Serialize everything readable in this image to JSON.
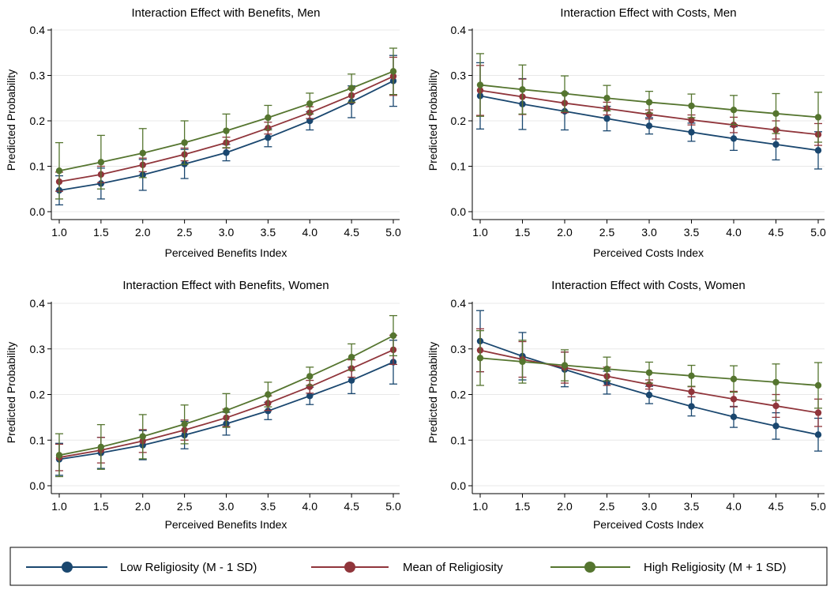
{
  "colors": {
    "low": "#1a476f",
    "mean": "#90353b",
    "high": "#55752f",
    "grid": "#e8e8e8",
    "axis": "#000000"
  },
  "legend": {
    "items": [
      {
        "key": "low",
        "label": "Low Religiosity (M - 1 SD)"
      },
      {
        "key": "mean",
        "label": "Mean of Religiosity"
      },
      {
        "key": "high",
        "label": "High Religiosity (M + 1 SD)"
      }
    ]
  },
  "chart_data": [
    {
      "type": "line",
      "title": "Interaction Effect with Benefits, Men",
      "xlabel": "Perceived Benefits Index",
      "ylabel": "Predicted Probability",
      "x": [
        1.0,
        1.5,
        2.0,
        2.5,
        3.0,
        3.5,
        4.0,
        4.5,
        5.0
      ],
      "xticks": [
        "1.0",
        "1.5",
        "2.0",
        "2.5",
        "3.0",
        "3.5",
        "4.0",
        "4.5",
        "5.0"
      ],
      "yticks": [
        "0.0",
        "0.1",
        "0.2",
        "0.3",
        "0.4"
      ],
      "xlim": [
        1.0,
        5.0
      ],
      "ylim": [
        0.0,
        0.4
      ],
      "grid": true,
      "series": [
        {
          "key": "low",
          "name": "Low Religiosity (M - 1 SD)",
          "values": [
            0.047,
            0.062,
            0.081,
            0.105,
            0.13,
            0.163,
            0.2,
            0.242,
            0.288
          ],
          "lower": [
            0.015,
            0.028,
            0.047,
            0.073,
            0.112,
            0.143,
            0.18,
            0.207,
            0.232
          ],
          "upper": [
            0.079,
            0.096,
            0.115,
            0.137,
            0.148,
            0.183,
            0.22,
            0.277,
            0.344
          ]
        },
        {
          "key": "mean",
          "name": "Mean of Religiosity",
          "values": [
            0.066,
            0.082,
            0.103,
            0.126,
            0.152,
            0.184,
            0.218,
            0.256,
            0.298
          ],
          "lower": [
            0.045,
            0.064,
            0.088,
            0.112,
            0.14,
            0.171,
            0.205,
            0.24,
            0.256
          ],
          "upper": [
            0.087,
            0.1,
            0.118,
            0.14,
            0.164,
            0.197,
            0.231,
            0.272,
            0.34
          ]
        },
        {
          "key": "high",
          "name": "High Religiosity (M + 1 SD)",
          "values": [
            0.09,
            0.109,
            0.129,
            0.152,
            0.178,
            0.207,
            0.238,
            0.272,
            0.309
          ],
          "lower": [
            0.028,
            0.05,
            0.075,
            0.104,
            0.141,
            0.18,
            0.215,
            0.241,
            0.258
          ],
          "upper": [
            0.152,
            0.168,
            0.183,
            0.2,
            0.215,
            0.234,
            0.261,
            0.303,
            0.36
          ]
        }
      ]
    },
    {
      "type": "line",
      "title": "Interaction Effect with Costs, Men",
      "xlabel": "Perceived Costs Index",
      "ylabel": "Predicted Probability",
      "x": [
        1.0,
        1.5,
        2.0,
        2.5,
        3.0,
        3.5,
        4.0,
        4.5,
        5.0
      ],
      "xticks": [
        "1.0",
        "1.5",
        "2.0",
        "2.5",
        "3.0",
        "3.5",
        "4.0",
        "4.5",
        "5.0"
      ],
      "yticks": [
        "0.0",
        "0.1",
        "0.2",
        "0.3",
        "0.4"
      ],
      "xlim": [
        1.0,
        5.0
      ],
      "ylim": [
        0.0,
        0.4
      ],
      "grid": true,
      "series": [
        {
          "key": "low",
          "name": "Low Religiosity (M - 1 SD)",
          "values": [
            0.255,
            0.237,
            0.221,
            0.205,
            0.189,
            0.175,
            0.161,
            0.148,
            0.135
          ],
          "lower": [
            0.182,
            0.181,
            0.18,
            0.178,
            0.171,
            0.155,
            0.135,
            0.114,
            0.094
          ],
          "upper": [
            0.328,
            0.293,
            0.262,
            0.232,
            0.207,
            0.195,
            0.187,
            0.182,
            0.176
          ]
        },
        {
          "key": "mean",
          "name": "Mean of Religiosity",
          "values": [
            0.267,
            0.253,
            0.239,
            0.227,
            0.214,
            0.202,
            0.191,
            0.18,
            0.17
          ],
          "lower": [
            0.212,
            0.214,
            0.218,
            0.213,
            0.204,
            0.191,
            0.174,
            0.16,
            0.146
          ],
          "upper": [
            0.322,
            0.292,
            0.26,
            0.241,
            0.224,
            0.213,
            0.208,
            0.2,
            0.194
          ]
        },
        {
          "key": "high",
          "name": "High Religiosity (M + 1 SD)",
          "values": [
            0.279,
            0.269,
            0.26,
            0.25,
            0.241,
            0.233,
            0.224,
            0.216,
            0.208
          ],
          "lower": [
            0.21,
            0.215,
            0.221,
            0.222,
            0.217,
            0.207,
            0.192,
            0.172,
            0.153
          ],
          "upper": [
            0.348,
            0.323,
            0.299,
            0.278,
            0.265,
            0.259,
            0.256,
            0.26,
            0.263
          ]
        }
      ]
    },
    {
      "type": "line",
      "title": "Interaction Effect with Benefits, Women",
      "xlabel": "Perceived Benefits Index",
      "ylabel": "Predicted Probability",
      "x": [
        1.0,
        1.5,
        2.0,
        2.5,
        3.0,
        3.5,
        4.0,
        4.5,
        5.0
      ],
      "xticks": [
        "1.0",
        "1.5",
        "2.0",
        "2.5",
        "3.0",
        "3.5",
        "4.0",
        "4.5",
        "5.0"
      ],
      "yticks": [
        "0.0",
        "0.1",
        "0.2",
        "0.3",
        "0.4"
      ],
      "xlim": [
        1.0,
        5.0
      ],
      "ylim": [
        0.0,
        0.4
      ],
      "grid": true,
      "series": [
        {
          "key": "low",
          "name": "Low Religiosity (M - 1 SD)",
          "values": [
            0.058,
            0.072,
            0.089,
            0.111,
            0.136,
            0.164,
            0.197,
            0.231,
            0.271
          ],
          "lower": [
            0.023,
            0.038,
            0.057,
            0.081,
            0.111,
            0.145,
            0.178,
            0.202,
            0.223
          ],
          "upper": [
            0.093,
            0.106,
            0.121,
            0.141,
            0.161,
            0.183,
            0.216,
            0.26,
            0.319
          ]
        },
        {
          "key": "mean",
          "name": "Mean of Religiosity",
          "values": [
            0.062,
            0.078,
            0.098,
            0.122,
            0.149,
            0.181,
            0.217,
            0.257,
            0.298
          ],
          "lower": [
            0.033,
            0.05,
            0.073,
            0.1,
            0.13,
            0.165,
            0.203,
            0.238,
            0.266
          ],
          "upper": [
            0.091,
            0.106,
            0.123,
            0.144,
            0.168,
            0.197,
            0.231,
            0.276,
            0.33
          ]
        },
        {
          "key": "high",
          "name": "High Religiosity (M + 1 SD)",
          "values": [
            0.067,
            0.085,
            0.108,
            0.135,
            0.165,
            0.2,
            0.24,
            0.282,
            0.329
          ],
          "lower": [
            0.02,
            0.036,
            0.059,
            0.092,
            0.128,
            0.173,
            0.22,
            0.253,
            0.285
          ],
          "upper": [
            0.114,
            0.134,
            0.156,
            0.177,
            0.202,
            0.227,
            0.26,
            0.311,
            0.373
          ]
        }
      ]
    },
    {
      "type": "line",
      "title": "Interaction Effect with Costs, Women",
      "xlabel": "Perceived Costs Index",
      "ylabel": "Predicted Probability",
      "x": [
        1.0,
        1.5,
        2.0,
        2.5,
        3.0,
        3.5,
        4.0,
        4.5,
        5.0
      ],
      "xticks": [
        "1.0",
        "1.5",
        "2.0",
        "2.5",
        "3.0",
        "3.5",
        "4.0",
        "4.5",
        "5.0"
      ],
      "yticks": [
        "0.0",
        "0.1",
        "0.2",
        "0.3",
        "0.4"
      ],
      "xlim": [
        1.0,
        5.0
      ],
      "ylim": [
        0.0,
        0.4
      ],
      "grid": true,
      "series": [
        {
          "key": "low",
          "name": "Low Religiosity (M - 1 SD)",
          "values": [
            0.317,
            0.284,
            0.255,
            0.226,
            0.199,
            0.174,
            0.151,
            0.131,
            0.112
          ],
          "lower": [
            0.25,
            0.232,
            0.217,
            0.201,
            0.18,
            0.153,
            0.128,
            0.102,
            0.076
          ],
          "upper": [
            0.384,
            0.336,
            0.293,
            0.251,
            0.218,
            0.195,
            0.174,
            0.16,
            0.148
          ]
        },
        {
          "key": "mean",
          "name": "Mean of Religiosity",
          "values": [
            0.297,
            0.277,
            0.259,
            0.24,
            0.222,
            0.206,
            0.19,
            0.175,
            0.16
          ],
          "lower": [
            0.25,
            0.238,
            0.225,
            0.22,
            0.212,
            0.195,
            0.173,
            0.15,
            0.13
          ],
          "upper": [
            0.344,
            0.316,
            0.293,
            0.26,
            0.232,
            0.217,
            0.207,
            0.2,
            0.19
          ]
        },
        {
          "key": "high",
          "name": "High Religiosity (M + 1 SD)",
          "values": [
            0.28,
            0.272,
            0.264,
            0.256,
            0.248,
            0.241,
            0.234,
            0.227,
            0.22
          ],
          "lower": [
            0.22,
            0.225,
            0.23,
            0.23,
            0.225,
            0.218,
            0.205,
            0.187,
            0.17
          ],
          "upper": [
            0.34,
            0.319,
            0.298,
            0.282,
            0.271,
            0.264,
            0.263,
            0.267,
            0.27
          ]
        }
      ]
    }
  ]
}
